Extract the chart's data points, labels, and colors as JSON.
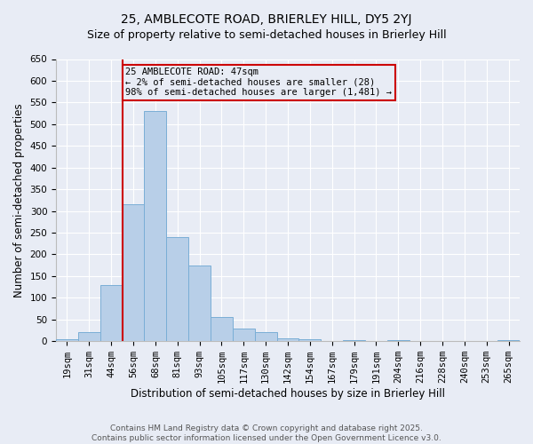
{
  "title": "25, AMBLECOTE ROAD, BRIERLEY HILL, DY5 2YJ",
  "subtitle": "Size of property relative to semi-detached houses in Brierley Hill",
  "xlabel": "Distribution of semi-detached houses by size in Brierley Hill",
  "ylabel": "Number of semi-detached properties",
  "bin_labels": [
    "19sqm",
    "31sqm",
    "44sqm",
    "56sqm",
    "68sqm",
    "81sqm",
    "93sqm",
    "105sqm",
    "117sqm",
    "130sqm",
    "142sqm",
    "154sqm",
    "167sqm",
    "179sqm",
    "191sqm",
    "204sqm",
    "216sqm",
    "228sqm",
    "240sqm",
    "253sqm",
    "265sqm"
  ],
  "bin_values": [
    5,
    20,
    130,
    315,
    530,
    240,
    175,
    55,
    30,
    20,
    7,
    5,
    0,
    3,
    0,
    2,
    1,
    0,
    0,
    0,
    2
  ],
  "bar_color": "#b8cfe8",
  "bar_edge_color": "#7aaed6",
  "property_line_bin_index": 3,
  "property_line_color": "#cc0000",
  "annotation_text": "25 AMBLECOTE ROAD: 47sqm\n← 2% of semi-detached houses are smaller (28)\n98% of semi-detached houses are larger (1,481) →",
  "annotation_box_color": "#cc0000",
  "annotation_text_color": "#000000",
  "ylim": [
    0,
    650
  ],
  "yticks": [
    0,
    50,
    100,
    150,
    200,
    250,
    300,
    350,
    400,
    450,
    500,
    550,
    600,
    650
  ],
  "footer_line1": "Contains HM Land Registry data © Crown copyright and database right 2025.",
  "footer_line2": "Contains public sector information licensed under the Open Government Licence v3.0.",
  "background_color": "#e8ecf5",
  "grid_color": "#ffffff",
  "title_fontsize": 10,
  "axis_label_fontsize": 8.5,
  "tick_fontsize": 7.5,
  "annotation_fontsize": 7.5,
  "footer_fontsize": 6.5
}
